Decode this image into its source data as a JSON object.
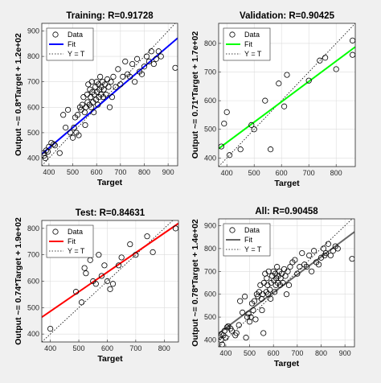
{
  "chart_data": [
    {
      "type": "scatter",
      "title": "Training: R=0.91728",
      "xlabel": "Target",
      "ylabel": "Output ~= 0.8*Target + 1.2e+02",
      "xlim": [
        370,
        940
      ],
      "ylim": [
        370,
        930
      ],
      "xticks": [
        400,
        500,
        600,
        700,
        800,
        900
      ],
      "yticks": [
        400,
        500,
        600,
        700,
        800,
        900
      ],
      "fit": {
        "slope": 0.8,
        "intercept": 120,
        "color": "#0000ff"
      },
      "legend": {
        "placement": "top-left",
        "data": "Data",
        "fit": "Fit",
        "yt": "Y = T"
      },
      "points": [
        [
          378,
          420
        ],
        [
          380,
          410
        ],
        [
          385,
          400
        ],
        [
          388,
          430
        ],
        [
          395,
          425
        ],
        [
          400,
          445
        ],
        [
          410,
          460
        ],
        [
          420,
          455
        ],
        [
          425,
          450
        ],
        [
          445,
          420
        ],
        [
          460,
          570
        ],
        [
          470,
          520
        ],
        [
          480,
          590
        ],
        [
          490,
          500
        ],
        [
          500,
          480
        ],
        [
          505,
          520
        ],
        [
          510,
          560
        ],
        [
          515,
          500
        ],
        [
          520,
          570
        ],
        [
          525,
          490
        ],
        [
          530,
          600
        ],
        [
          535,
          590
        ],
        [
          540,
          610
        ],
        [
          545,
          640
        ],
        [
          550,
          580
        ],
        [
          552,
          530
        ],
        [
          555,
          600
        ],
        [
          560,
          650
        ],
        [
          562,
          620
        ],
        [
          565,
          690
        ],
        [
          570,
          610
        ],
        [
          572,
          670
        ],
        [
          575,
          640
        ],
        [
          578,
          600
        ],
        [
          580,
          700
        ],
        [
          582,
          660
        ],
        [
          585,
          620
        ],
        [
          588,
          580
        ],
        [
          590,
          650
        ],
        [
          595,
          680
        ],
        [
          598,
          630
        ],
        [
          600,
          700
        ],
        [
          602,
          660
        ],
        [
          605,
          610
        ],
        [
          608,
          690
        ],
        [
          610,
          640
        ],
        [
          612,
          670
        ],
        [
          615,
          720
        ],
        [
          618,
          650
        ],
        [
          620,
          680
        ],
        [
          625,
          700
        ],
        [
          628,
          640
        ],
        [
          630,
          670
        ],
        [
          635,
          690
        ],
        [
          640,
          650
        ],
        [
          645,
          710
        ],
        [
          650,
          680
        ],
        [
          655,
          600
        ],
        [
          660,
          700
        ],
        [
          665,
          640
        ],
        [
          670,
          720
        ],
        [
          680,
          680
        ],
        [
          690,
          750
        ],
        [
          700,
          690
        ],
        [
          710,
          720
        ],
        [
          720,
          780
        ],
        [
          730,
          730
        ],
        [
          740,
          720
        ],
        [
          750,
          770
        ],
        [
          760,
          700
        ],
        [
          770,
          790
        ],
        [
          780,
          740
        ],
        [
          790,
          730
        ],
        [
          800,
          760
        ],
        [
          810,
          800
        ],
        [
          820,
          780
        ],
        [
          830,
          820
        ],
        [
          840,
          770
        ],
        [
          850,
          790
        ],
        [
          860,
          820
        ],
        [
          870,
          800
        ],
        [
          930,
          755
        ]
      ]
    },
    {
      "type": "scatter",
      "title": "Validation: R=0.90425",
      "xlabel": "Target",
      "ylabel": "Output ~= 0.71*Target + 1.7e+02",
      "xlim": [
        370,
        870
      ],
      "ylim": [
        370,
        870
      ],
      "xticks": [
        400,
        500,
        600,
        700,
        800
      ],
      "yticks": [
        400,
        500,
        600,
        700,
        800
      ],
      "fit": {
        "slope": 0.71,
        "intercept": 170,
        "color": "#00ff00"
      },
      "legend": {
        "placement": "top-left",
        "data": "Data",
        "fit": "Fit",
        "yt": "Y = T"
      },
      "points": [
        [
          380,
          440
        ],
        [
          390,
          520
        ],
        [
          400,
          560
        ],
        [
          410,
          410
        ],
        [
          450,
          430
        ],
        [
          490,
          515
        ],
        [
          500,
          500
        ],
        [
          540,
          600
        ],
        [
          560,
          430
        ],
        [
          590,
          660
        ],
        [
          610,
          580
        ],
        [
          620,
          690
        ],
        [
          700,
          670
        ],
        [
          740,
          740
        ],
        [
          760,
          750
        ],
        [
          800,
          710
        ],
        [
          860,
          760
        ],
        [
          860,
          810
        ]
      ]
    },
    {
      "type": "scatter",
      "title": "Test: R=0.84631",
      "xlabel": "Target",
      "ylabel": "Output ~= 0.74*Target + 1.9e+02",
      "xlim": [
        370,
        850
      ],
      "ylim": [
        370,
        830
      ],
      "xticks": [
        400,
        500,
        600,
        700,
        800
      ],
      "yticks": [
        400,
        500,
        600,
        700,
        800
      ],
      "fit": {
        "slope": 0.74,
        "intercept": 190,
        "color": "#ff0000"
      },
      "legend": {
        "placement": "top-left",
        "data": "Data",
        "fit": "Fit",
        "yt": "Y = T"
      },
      "points": [
        [
          400,
          420
        ],
        [
          490,
          560
        ],
        [
          510,
          520
        ],
        [
          520,
          650
        ],
        [
          525,
          630
        ],
        [
          540,
          680
        ],
        [
          550,
          600
        ],
        [
          560,
          590
        ],
        [
          570,
          700
        ],
        [
          580,
          620
        ],
        [
          590,
          660
        ],
        [
          600,
          600
        ],
        [
          610,
          570
        ],
        [
          620,
          590
        ],
        [
          640,
          660
        ],
        [
          650,
          690
        ],
        [
          680,
          740
        ],
        [
          700,
          700
        ],
        [
          740,
          770
        ],
        [
          760,
          710
        ],
        [
          840,
          800
        ]
      ]
    },
    {
      "type": "scatter",
      "title": "All: R=0.90458",
      "xlabel": "Target",
      "ylabel": "Output ~= 0.78*Target + 1.4e+02",
      "xlim": [
        370,
        940
      ],
      "ylim": [
        370,
        930
      ],
      "xticks": [
        400,
        500,
        600,
        700,
        800,
        900
      ],
      "yticks": [
        400,
        500,
        600,
        700,
        800,
        900
      ],
      "fit": {
        "slope": 0.78,
        "intercept": 140,
        "color": "#666666"
      },
      "legend": {
        "placement": "top-left",
        "data": "Data",
        "fit": "Fit",
        "yt": "Y = T"
      },
      "points": [
        [
          375,
          415
        ],
        [
          380,
          400
        ],
        [
          382,
          425
        ],
        [
          385,
          380
        ],
        [
          390,
          420
        ],
        [
          395,
          440
        ],
        [
          400,
          410
        ],
        [
          405,
          455
        ],
        [
          410,
          460
        ],
        [
          420,
          450
        ],
        [
          425,
          440
        ],
        [
          440,
          420
        ],
        [
          445,
          430
        ],
        [
          455,
          465
        ],
        [
          460,
          570
        ],
        [
          470,
          520
        ],
        [
          480,
          590
        ],
        [
          485,
          410
        ],
        [
          490,
          500
        ],
        [
          495,
          515
        ],
        [
          500,
          480
        ],
        [
          505,
          500
        ],
        [
          510,
          560
        ],
        [
          515,
          530
        ],
        [
          520,
          570
        ],
        [
          525,
          490
        ],
        [
          530,
          600
        ],
        [
          535,
          590
        ],
        [
          540,
          610
        ],
        [
          545,
          640
        ],
        [
          550,
          580
        ],
        [
          552,
          530
        ],
        [
          555,
          600
        ],
        [
          558,
          430
        ],
        [
          560,
          650
        ],
        [
          565,
          690
        ],
        [
          570,
          610
        ],
        [
          572,
          670
        ],
        [
          575,
          640
        ],
        [
          578,
          600
        ],
        [
          580,
          700
        ],
        [
          585,
          620
        ],
        [
          588,
          580
        ],
        [
          590,
          650
        ],
        [
          595,
          680
        ],
        [
          600,
          700
        ],
        [
          602,
          660
        ],
        [
          605,
          610
        ],
        [
          608,
          690
        ],
        [
          610,
          640
        ],
        [
          612,
          670
        ],
        [
          615,
          720
        ],
        [
          618,
          650
        ],
        [
          620,
          680
        ],
        [
          625,
          700
        ],
        [
          628,
          640
        ],
        [
          630,
          670
        ],
        [
          635,
          690
        ],
        [
          640,
          650
        ],
        [
          645,
          710
        ],
        [
          650,
          680
        ],
        [
          655,
          600
        ],
        [
          660,
          700
        ],
        [
          665,
          640
        ],
        [
          670,
          720
        ],
        [
          680,
          740
        ],
        [
          690,
          750
        ],
        [
          700,
          690
        ],
        [
          710,
          720
        ],
        [
          720,
          780
        ],
        [
          730,
          730
        ],
        [
          740,
          720
        ],
        [
          750,
          770
        ],
        [
          760,
          700
        ],
        [
          770,
          790
        ],
        [
          780,
          740
        ],
        [
          790,
          730
        ],
        [
          800,
          760
        ],
        [
          810,
          800
        ],
        [
          815,
          770
        ],
        [
          820,
          780
        ],
        [
          830,
          820
        ],
        [
          840,
          770
        ],
        [
          850,
          790
        ],
        [
          860,
          810
        ],
        [
          870,
          800
        ],
        [
          930,
          755
        ]
      ]
    }
  ]
}
